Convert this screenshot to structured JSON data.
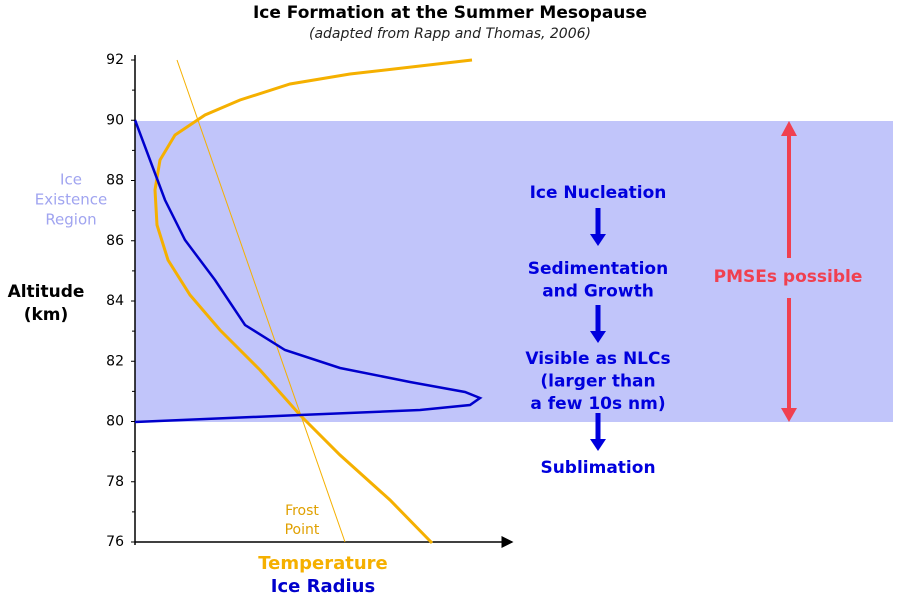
{
  "title": "Ice Formation at  the Summer Mesopause",
  "subtitle": "(adapted from Rapp and Thomas, 2006)",
  "y_axis": {
    "label": [
      "Altitude",
      "(km)"
    ],
    "ticks": [
      76,
      78,
      80,
      82,
      84,
      86,
      88,
      90,
      92
    ],
    "range": [
      76,
      92
    ]
  },
  "region_label": [
    "Ice",
    "Existence",
    "Region"
  ],
  "x_labels": [
    "Temperature",
    "Ice Radius"
  ],
  "frost_label": [
    "Frost",
    "Point"
  ],
  "steps": [
    [
      "Ice Nucleation"
    ],
    [
      "Sedimentation",
      "and Growth"
    ],
    [
      "Visible as NLCs",
      "(larger than",
      "a few 10s nm)"
    ],
    [
      "Sublimation"
    ]
  ],
  "pmse_label": "PMSEs possible"
}
